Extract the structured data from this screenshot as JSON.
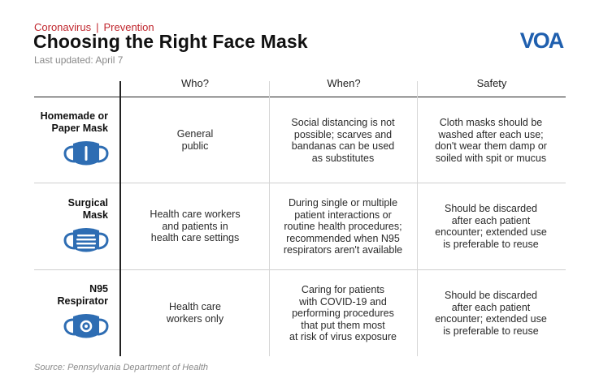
{
  "header": {
    "kicker_topic": "Coronavirus",
    "kicker_separator": "|",
    "kicker_section": "Prevention",
    "title": "Choosing the Right Face Mask",
    "updated": "Last updated: April 7",
    "logo_text": "VOA"
  },
  "table": {
    "columns": [
      "Who?",
      "When?",
      "Safety"
    ],
    "rows": [
      {
        "label_lines": [
          "Homemade or",
          "Paper Mask"
        ],
        "icon": "cloth-mask-icon",
        "who": [
          "General",
          "public"
        ],
        "when": [
          "Social distancing is not",
          "possible; scarves and",
          "bandanas can be used",
          "as substitutes"
        ],
        "safety": [
          "Cloth masks should be",
          "washed after each use;",
          "don't wear them damp or",
          "soiled with spit or mucus"
        ]
      },
      {
        "label_lines": [
          "Surgical",
          "Mask"
        ],
        "icon": "surgical-mask-icon",
        "who": [
          "Health care workers",
          "and patients in",
          "health care settings"
        ],
        "when": [
          "During single or multiple",
          "patient interactions or",
          "routine health procedures;",
          "recommended when N95",
          "respirators aren't available"
        ],
        "safety": [
          "Should be discarded",
          "after each patient",
          "encounter; extended use",
          "is preferable to reuse"
        ]
      },
      {
        "label_lines": [
          "N95",
          "Respirator"
        ],
        "icon": "n95-respirator-icon",
        "who": [
          "Health care",
          "workers only"
        ],
        "when": [
          "Caring for patients",
          "with COVID-19 and",
          "performing procedures",
          "that put them most",
          "at risk of virus exposure"
        ],
        "safety": [
          "Should be discarded",
          "after each patient",
          "encounter; extended use",
          "is preferable to reuse"
        ]
      }
    ]
  },
  "source": "Source: Pennsylvania Department of Health",
  "colors": {
    "accent_red": "#c0262d",
    "mask_blue": "#2e6db3",
    "logo_blue": "#1f5fae"
  }
}
